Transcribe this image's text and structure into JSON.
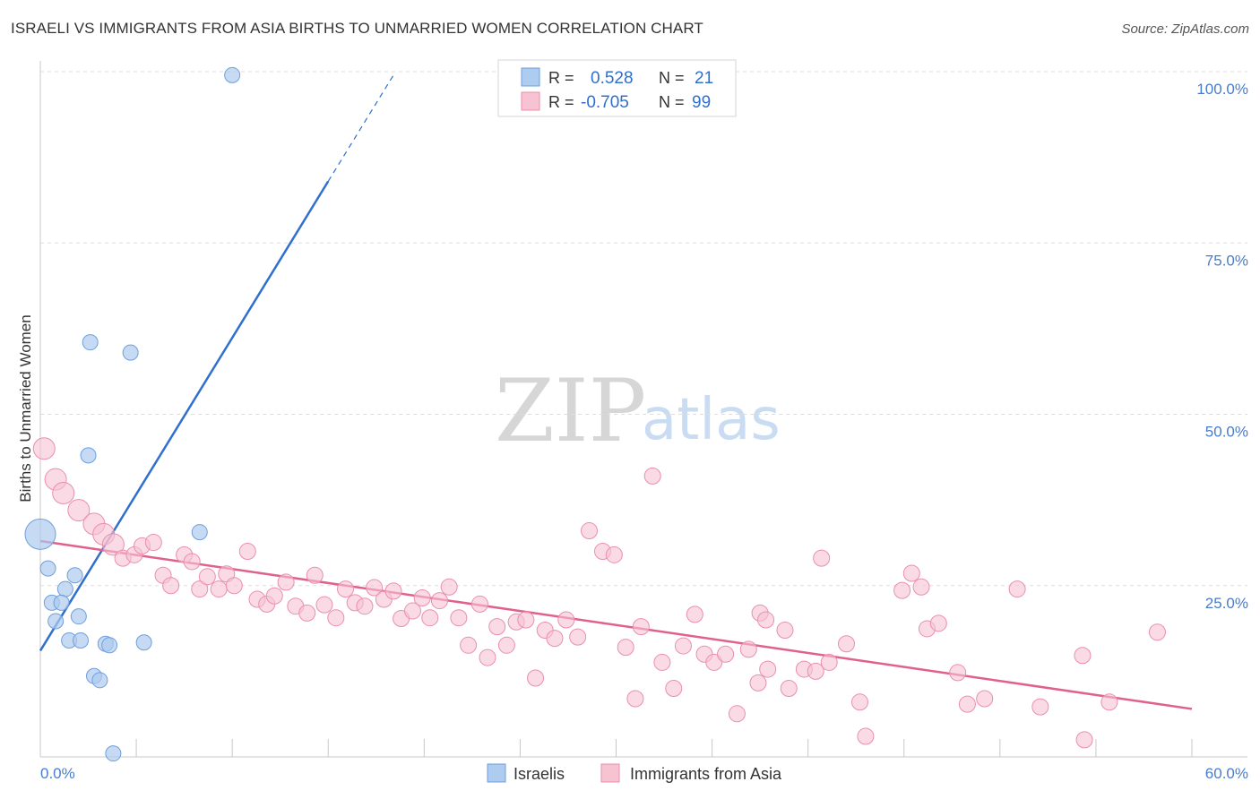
{
  "header": {
    "title": "ISRAELI VS IMMIGRANTS FROM ASIA BIRTHS TO UNMARRIED WOMEN CORRELATION CHART",
    "source": "Source: ZipAtlas.com"
  },
  "watermark": {
    "zip": "ZIP",
    "atlas": "atlas"
  },
  "colors": {
    "israelis_fill": "#aecbf0",
    "israelis_stroke": "#6f9fdc",
    "israelis_line": "#2f6fd0",
    "asia_fill": "#f7c3d3",
    "asia_stroke": "#ea8fac",
    "asia_line": "#e0608e",
    "tick_text": "#4a7cc9"
  },
  "legend_stats": [
    {
      "r_label": "R =",
      "r_value": "0.528",
      "n_label": "N =",
      "n_value": "21"
    },
    {
      "r_label": "R =",
      "r_value": "-0.705",
      "n_label": "N =",
      "n_value": "99"
    }
  ],
  "chart_data": {
    "type": "scatter",
    "title": "ISRAELI VS IMMIGRANTS FROM ASIA BIRTHS TO UNMARRIED WOMEN CORRELATION CHART",
    "xlabel": "",
    "ylabel": "Births to Unmarried Women",
    "xlim": [
      0,
      60
    ],
    "ylim": [
      0,
      100
    ],
    "x_tick_labels": [
      "0.0%",
      "60.0%"
    ],
    "y_ticks": [
      25,
      50,
      75,
      100
    ],
    "y_tick_labels": [
      "25.0%",
      "50.0%",
      "75.0%",
      "100.0%"
    ],
    "grid": true,
    "legend": "bottom-center",
    "series": [
      {
        "name": "Israelis",
        "r": 0.528,
        "n": 21,
        "trend": {
          "x0": 0,
          "y0": 15.5,
          "x1": 15.0,
          "y1": 84.0,
          "dash_x1": 18.4,
          "dash_y1": 99.5
        },
        "points": [
          [
            10.0,
            99.5
          ],
          [
            2.6,
            60.5
          ],
          [
            4.7,
            59.0
          ],
          [
            2.5,
            44.0
          ],
          [
            0.0,
            32.5
          ],
          [
            8.3,
            32.8
          ],
          [
            0.4,
            27.5
          ],
          [
            1.8,
            26.5
          ],
          [
            1.3,
            24.5
          ],
          [
            0.6,
            22.5
          ],
          [
            1.1,
            22.5
          ],
          [
            2.0,
            20.5
          ],
          [
            0.8,
            19.8
          ],
          [
            1.5,
            17.0
          ],
          [
            2.1,
            17.0
          ],
          [
            3.4,
            16.5
          ],
          [
            3.6,
            16.3
          ],
          [
            5.4,
            16.7
          ],
          [
            2.8,
            11.8
          ],
          [
            3.1,
            11.2
          ],
          [
            3.8,
            0.5
          ]
        ]
      },
      {
        "name": "Immigrants from Asia",
        "r": -0.705,
        "n": 99,
        "trend": {
          "x0": 0,
          "y0": 31.5,
          "x1": 60.0,
          "y1": 7.0
        },
        "points": [
          [
            0.2,
            45.0
          ],
          [
            0.8,
            40.5
          ],
          [
            1.2,
            38.5
          ],
          [
            2.0,
            36.0
          ],
          [
            2.8,
            34.0
          ],
          [
            3.3,
            32.5
          ],
          [
            3.8,
            31.0
          ],
          [
            4.3,
            29.0
          ],
          [
            4.9,
            29.5
          ],
          [
            5.3,
            30.8
          ],
          [
            5.9,
            31.3
          ],
          [
            6.4,
            26.5
          ],
          [
            6.8,
            25.0
          ],
          [
            7.5,
            29.5
          ],
          [
            7.9,
            28.5
          ],
          [
            8.3,
            24.5
          ],
          [
            8.7,
            26.3
          ],
          [
            9.3,
            24.5
          ],
          [
            9.7,
            26.7
          ],
          [
            10.1,
            25.0
          ],
          [
            10.8,
            30.0
          ],
          [
            11.3,
            23.0
          ],
          [
            11.8,
            22.3
          ],
          [
            12.2,
            23.5
          ],
          [
            12.8,
            25.5
          ],
          [
            13.3,
            22.0
          ],
          [
            13.9,
            21.0
          ],
          [
            14.3,
            26.5
          ],
          [
            14.8,
            22.2
          ],
          [
            15.4,
            20.3
          ],
          [
            15.9,
            24.5
          ],
          [
            16.4,
            22.5
          ],
          [
            16.9,
            22.0
          ],
          [
            17.4,
            24.7
          ],
          [
            17.9,
            23.0
          ],
          [
            18.4,
            24.2
          ],
          [
            18.8,
            20.2
          ],
          [
            19.4,
            21.3
          ],
          [
            19.9,
            23.2
          ],
          [
            20.3,
            20.3
          ],
          [
            20.8,
            22.8
          ],
          [
            21.3,
            24.8
          ],
          [
            21.8,
            20.3
          ],
          [
            22.3,
            16.3
          ],
          [
            22.9,
            22.3
          ],
          [
            23.3,
            14.5
          ],
          [
            23.8,
            19.0
          ],
          [
            24.3,
            16.3
          ],
          [
            24.8,
            19.7
          ],
          [
            25.3,
            20.0
          ],
          [
            25.8,
            11.5
          ],
          [
            26.3,
            18.5
          ],
          [
            26.8,
            17.3
          ],
          [
            27.4,
            20.0
          ],
          [
            28.0,
            17.5
          ],
          [
            28.6,
            33.0
          ],
          [
            29.3,
            30.0
          ],
          [
            29.9,
            29.5
          ],
          [
            30.5,
            16.0
          ],
          [
            31.3,
            19.0
          ],
          [
            31.0,
            8.5
          ],
          [
            31.9,
            41.0
          ],
          [
            32.4,
            13.8
          ],
          [
            33.0,
            10.0
          ],
          [
            33.5,
            16.2
          ],
          [
            34.1,
            20.8
          ],
          [
            34.6,
            15.0
          ],
          [
            35.1,
            13.8
          ],
          [
            35.7,
            15.0
          ],
          [
            36.3,
            6.3
          ],
          [
            36.9,
            15.7
          ],
          [
            37.5,
            21.0
          ],
          [
            37.8,
            20.0
          ],
          [
            37.4,
            10.8
          ],
          [
            37.9,
            12.8
          ],
          [
            38.8,
            18.5
          ],
          [
            39.0,
            10.0
          ],
          [
            39.8,
            12.8
          ],
          [
            40.4,
            12.5
          ],
          [
            40.7,
            29.0
          ],
          [
            41.1,
            13.8
          ],
          [
            42.0,
            16.5
          ],
          [
            42.7,
            8.0
          ],
          [
            43.0,
            3.0
          ],
          [
            44.9,
            24.3
          ],
          [
            45.4,
            26.8
          ],
          [
            45.9,
            24.8
          ],
          [
            46.2,
            18.7
          ],
          [
            46.8,
            19.5
          ],
          [
            47.8,
            12.3
          ],
          [
            48.3,
            7.7
          ],
          [
            49.2,
            8.5
          ],
          [
            50.9,
            24.5
          ],
          [
            52.1,
            7.3
          ],
          [
            54.3,
            14.8
          ],
          [
            54.4,
            2.5
          ],
          [
            55.7,
            8.0
          ],
          [
            58.2,
            18.2
          ]
        ]
      }
    ]
  },
  "bottom_legend": [
    {
      "label": "Israelis"
    },
    {
      "label": "Immigrants from Asia"
    }
  ]
}
